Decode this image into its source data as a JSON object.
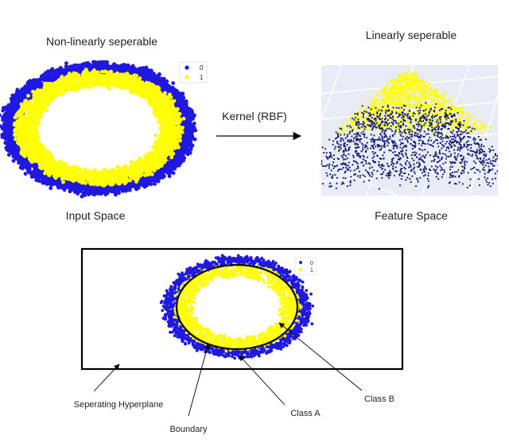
{
  "titles": {
    "nonlinear": "Non-linearly seperable",
    "linear": "Linearly seperable",
    "input_space": "Input Space",
    "feature_space": "Feature Space"
  },
  "kernel_label": "Kernel (RBF)",
  "legend": {
    "items": [
      {
        "label": "0",
        "color": "#1f18e0"
      },
      {
        "label": "1",
        "color": "#ffff00"
      }
    ]
  },
  "annotations": {
    "hyperplane": "Seperating Hyperplane",
    "boundary": "Boundary",
    "class_a": "Class A",
    "class_b": "Class B"
  },
  "colors": {
    "class0": "#1f18e0",
    "class1": "#ffff00",
    "feature_class0": "#141a6e",
    "feature_bg": "#e8ecf6",
    "feature_grid": "#ffffff"
  }
}
